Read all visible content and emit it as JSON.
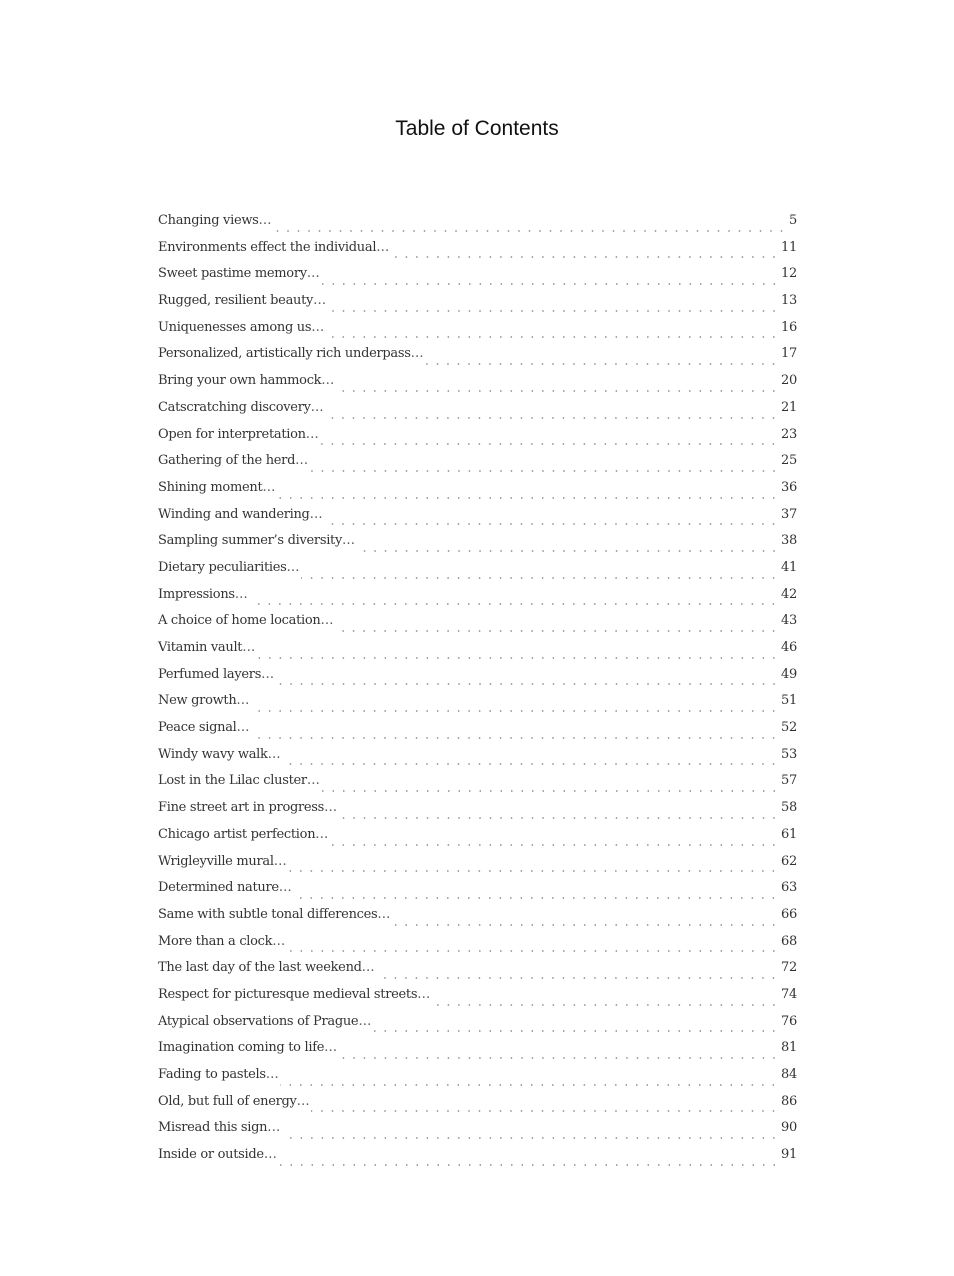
{
  "title": "Table of Contents",
  "entries": [
    {
      "label": "Changing views",
      "page": "5"
    },
    {
      "label": "Environments effect the individual",
      "page": "11"
    },
    {
      "label": "Sweet pastime memory",
      "page": "12"
    },
    {
      "label": "Rugged, resilient beauty",
      "page": "13"
    },
    {
      "label": "Uniquenesses among us",
      "page": "16"
    },
    {
      "label": "Personalized, artistically rich underpass",
      "page": "17"
    },
    {
      "label": "Bring your own hammock",
      "page": "20"
    },
    {
      "label": "Catscratching discovery",
      "page": "21"
    },
    {
      "label": "Open for interpretation",
      "page": "23"
    },
    {
      "label": "Gathering of the herd",
      "page": "25"
    },
    {
      "label": "Shining moment",
      "page": "36"
    },
    {
      "label": "Winding and wandering",
      "page": "37"
    },
    {
      "label": "Sampling summer’s diversity",
      "page": "38"
    },
    {
      "label": "Dietary peculiarities",
      "page": "41"
    },
    {
      "label": "Impressions",
      "page": "42"
    },
    {
      "label": "A choice of home location",
      "page": "43"
    },
    {
      "label": "Vitamin vault",
      "page": "46"
    },
    {
      "label": "Perfumed layers",
      "page": "49"
    },
    {
      "label": "New growth",
      "page": "51"
    },
    {
      "label": "Peace signal",
      "page": "52"
    },
    {
      "label": "Windy wavy walk",
      "page": "53"
    },
    {
      "label": "Lost in the Lilac cluster",
      "page": "57"
    },
    {
      "label": "Fine street art in progress",
      "page": "58"
    },
    {
      "label": "Chicago artist perfection",
      "page": "61"
    },
    {
      "label": "Wrigleyville mural",
      "page": "62"
    },
    {
      "label": "Determined nature",
      "page": "63"
    },
    {
      "label": "Same with subtle tonal differences",
      "page": "66"
    },
    {
      "label": "More than a clock",
      "page": "68"
    },
    {
      "label": "The last day of the last weekend",
      "page": "72"
    },
    {
      "label": "Respect for picturesque medieval streets",
      "page": "74"
    },
    {
      "label": "Atypical observations of Prague",
      "page": "76"
    },
    {
      "label": "Imagination coming to life",
      "page": "81"
    },
    {
      "label": "Fading to pastels",
      "page": "84"
    },
    {
      "label": "Old, but full of energy",
      "page": "86"
    },
    {
      "label": "Misread this sign",
      "page": "90"
    },
    {
      "label": "Inside or outside",
      "page": "91"
    }
  ]
}
